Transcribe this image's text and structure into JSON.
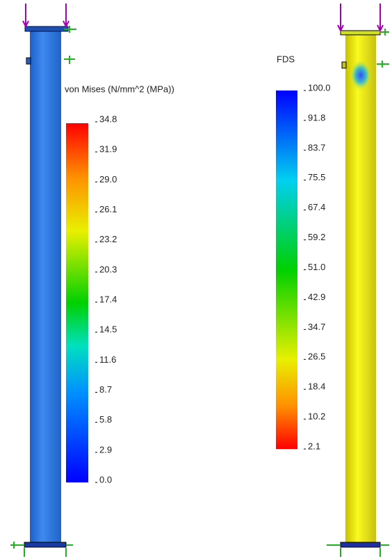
{
  "left_legend": {
    "title": "von Mises (N/mm^2 (MPa))",
    "ticks": [
      "34.8",
      "31.9",
      "29.0",
      "26.1",
      "23.2",
      "20.3",
      "17.4",
      "14.5",
      "11.6",
      "8.7",
      "5.8",
      "2.9",
      "0.0"
    ]
  },
  "right_legend": {
    "title": "FDS",
    "ticks": [
      "100.0",
      "91.8",
      "83.7",
      "75.5",
      "67.4",
      "59.2",
      "51.0",
      "42.9",
      "34.7",
      "26.5",
      "18.4",
      "10.2",
      "2.1"
    ]
  }
}
